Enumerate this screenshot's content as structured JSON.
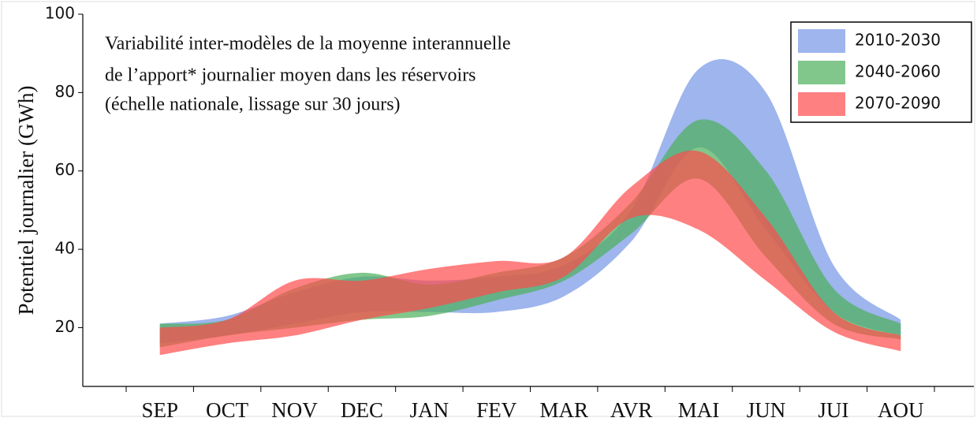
{
  "chart_data": {
    "type": "band",
    "annotation": [
      "Variabilité  inter-modèles de la moyenne interannuelle",
      "de l’apport* journalier moyen dans les réservoirs",
      "(échelle nationale, lissage sur 30 jours)"
    ],
    "y_label": "Potentiel journalier (GWh)",
    "categories": [
      "SEP",
      "OCT",
      "NOV",
      "DEC",
      "JAN",
      "FEV",
      "MAR",
      "AVR",
      "MAI",
      "JUN",
      "JUI",
      "AOU"
    ],
    "ylim": [
      5,
      100
    ],
    "yticks": [
      20,
      40,
      60,
      80,
      100
    ],
    "legend": "top-right",
    "series": [
      {
        "name": "2010-2030",
        "color": "#7595e6",
        "low": [
          16,
          18,
          21,
          24,
          24,
          24,
          28,
          42,
          66,
          45,
          24,
          18
        ],
        "high": [
          21,
          23,
          29,
          33,
          32,
          33,
          36,
          50,
          86,
          80,
          36,
          22
        ]
      },
      {
        "name": "2040-2060",
        "color": "#4caf5a",
        "low": [
          15,
          18,
          20,
          22,
          23,
          27,
          32,
          44,
          58,
          38,
          21,
          17
        ],
        "high": [
          21,
          22,
          30,
          34,
          31,
          34,
          38,
          52,
          73,
          60,
          30,
          21
        ]
      },
      {
        "name": "2070-2090",
        "color": "#ff4a4a",
        "low": [
          13,
          16,
          18,
          22,
          25,
          29,
          33,
          48,
          45,
          32,
          19,
          14
        ],
        "high": [
          20,
          22,
          32,
          32,
          35,
          37,
          38,
          56,
          65,
          48,
          24,
          18
        ]
      }
    ]
  }
}
